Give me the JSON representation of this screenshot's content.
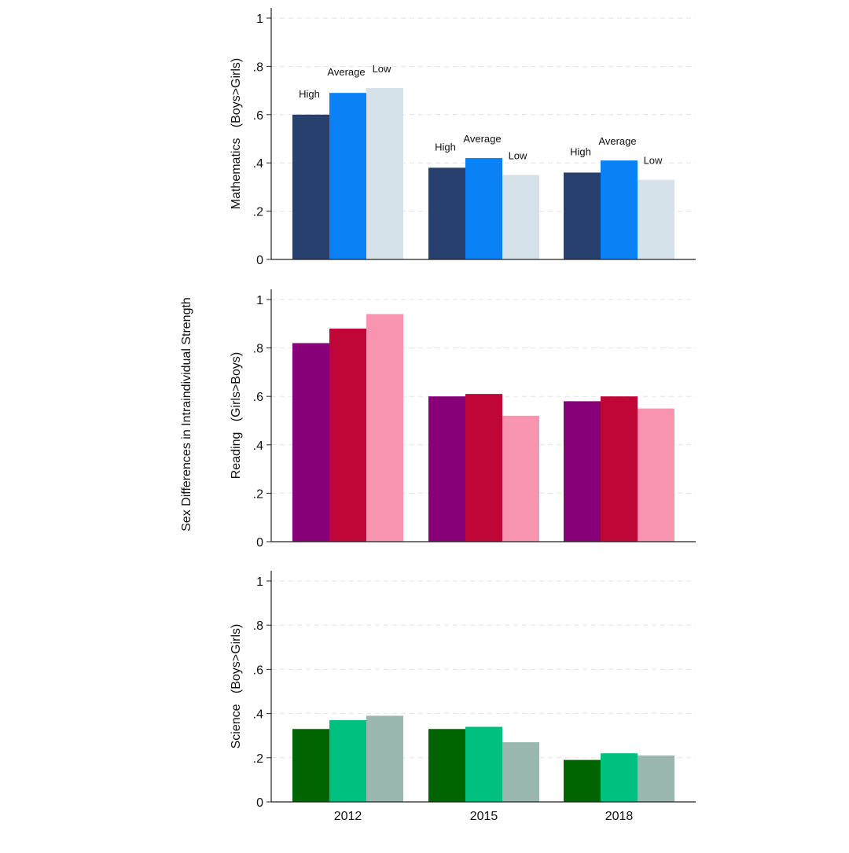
{
  "overall_ylabel": "Sex Differences in Intraindividual Strength",
  "chart_data": [
    {
      "type": "bar",
      "ylabel": "Mathematics   (Boys>Girls)",
      "categories": [
        "2012",
        "2015",
        "2018"
      ],
      "ylim": [
        0,
        1
      ],
      "yticks": [
        "0",
        ".2",
        ".4",
        ".6",
        ".8",
        "1"
      ],
      "grid": true,
      "series": [
        {
          "name": "High",
          "color": "#27406e",
          "values": [
            0.6,
            0.38,
            0.36
          ]
        },
        {
          "name": "Average",
          "color": "#0a82f5",
          "values": [
            0.69,
            0.42,
            0.41
          ]
        },
        {
          "name": "Low",
          "color": "#d6e2ea",
          "values": [
            0.71,
            0.35,
            0.33
          ]
        }
      ],
      "show_series_labels_on_bars": true,
      "show_xtick_labels": false
    },
    {
      "type": "bar",
      "ylabel": "Reading   (Girls>Boys)",
      "categories": [
        "2012",
        "2015",
        "2018"
      ],
      "ylim": [
        0,
        1
      ],
      "yticks": [
        "0",
        ".2",
        ".4",
        ".6",
        ".8",
        "1"
      ],
      "grid": true,
      "series": [
        {
          "color": "#880078",
          "values": [
            0.82,
            0.6,
            0.58
          ]
        },
        {
          "color": "#c00636",
          "values": [
            0.88,
            0.61,
            0.6
          ]
        },
        {
          "color": "#f893b0",
          "values": [
            0.94,
            0.52,
            0.55
          ]
        }
      ],
      "show_series_labels_on_bars": false,
      "show_xtick_labels": false
    },
    {
      "type": "bar",
      "ylabel": "Science   (Boys>Girls)",
      "categories": [
        "2012",
        "2015",
        "2018"
      ],
      "ylim": [
        0,
        1
      ],
      "yticks": [
        "0",
        ".2",
        ".4",
        ".6",
        ".8",
        "1"
      ],
      "grid": true,
      "series": [
        {
          "color": "#006400",
          "values": [
            0.33,
            0.33,
            0.19
          ]
        },
        {
          "color": "#00c080",
          "values": [
            0.37,
            0.34,
            0.22
          ]
        },
        {
          "color": "#9ab8b0",
          "values": [
            0.39,
            0.27,
            0.21
          ]
        }
      ],
      "show_series_labels_on_bars": false,
      "show_xtick_labels": true
    }
  ]
}
